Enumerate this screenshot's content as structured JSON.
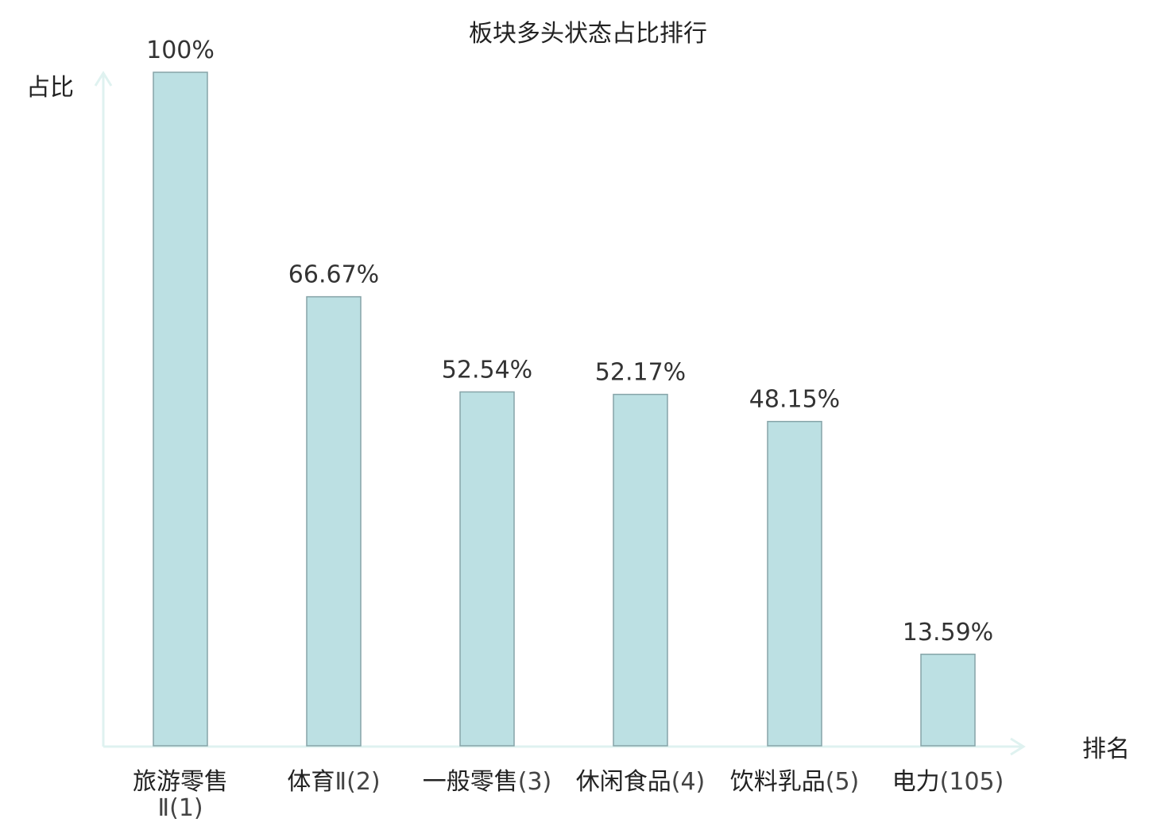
{
  "chart_data": {
    "type": "bar",
    "title": "板块多头状态占比排行",
    "ylabel": "占比",
    "xlabel": "排名",
    "ylim": [
      0,
      100
    ],
    "grid": false,
    "legend": "none",
    "categories": [
      {
        "lines": [
          {
            "name": "旅游零售",
            "rank": ""
          },
          {
            "name": "",
            "rank": "Ⅱ(1)"
          }
        ],
        "highlight": false
      },
      {
        "lines": [
          {
            "name": "体育",
            "rank": "Ⅱ(2)"
          }
        ],
        "highlight": false
      },
      {
        "lines": [
          {
            "name": "一般零售",
            "rank": "(3)"
          }
        ],
        "highlight": false
      },
      {
        "lines": [
          {
            "name": "休闲食品",
            "rank": "(4)"
          }
        ],
        "highlight": false
      },
      {
        "lines": [
          {
            "name": "饮料乳品",
            "rank": "(5)"
          }
        ],
        "highlight": false
      },
      {
        "lines": [
          {
            "name": "电力",
            "rank": "(105)"
          }
        ],
        "highlight": true
      }
    ],
    "values": [
      100,
      66.67,
      52.54,
      52.17,
      48.15,
      13.59
    ],
    "value_labels": [
      "100%",
      "66.67%",
      "52.54%",
      "52.17%",
      "48.15%",
      "13.59%"
    ],
    "colors": {
      "bar_fill": "#bce0e3",
      "bar_stroke": "#86a4a8",
      "axis": "#dff2f0",
      "highlight": "#e8232b"
    }
  }
}
